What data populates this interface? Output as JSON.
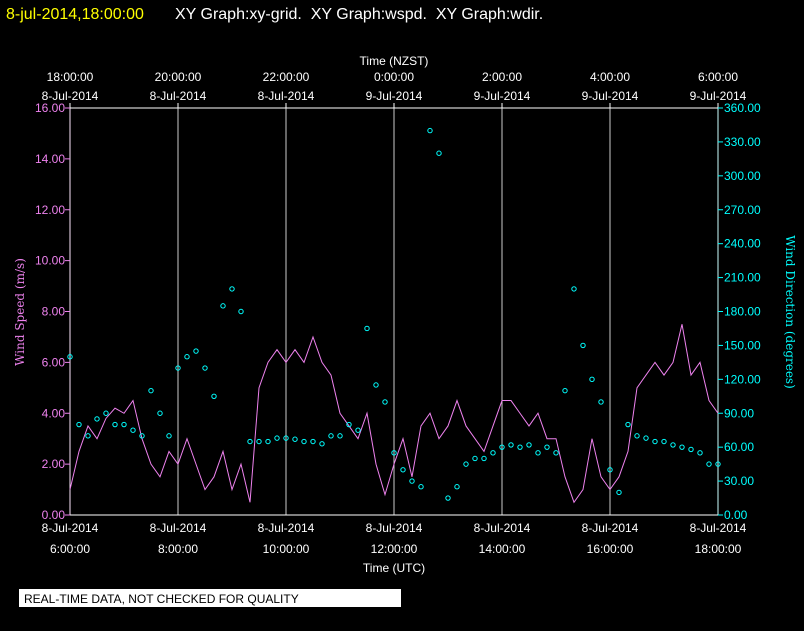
{
  "header": {
    "timestamp": "8-jul-2014,18:00:00",
    "graphs": "XY Graph:xy-grid.  XY Graph:wspd.  XY Graph:wdir."
  },
  "footer": "REAL-TIME DATA, NOT CHECKED FOR QUALITY",
  "chart_data": {
    "type": "line",
    "x_label": "Time (UTC)",
    "x2_label": "Time (NZST)",
    "y_label": "Wind Speed (m/s)",
    "y2_label": "Wind Direction (degrees)",
    "xlim": [
      "2014-07-08 06:00",
      "2014-07-08 18:00"
    ],
    "xticks": [
      {
        "value": "2014-07-08 06:00",
        "label": [
          "8-Jul-2014",
          "6:00:00"
        ]
      },
      {
        "value": "2014-07-08 08:00",
        "label": [
          "8-Jul-2014",
          "8:00:00"
        ]
      },
      {
        "value": "2014-07-08 10:00",
        "label": [
          "8-Jul-2014",
          "10:00:00"
        ]
      },
      {
        "value": "2014-07-08 12:00",
        "label": [
          "8-Jul-2014",
          "12:00:00"
        ]
      },
      {
        "value": "2014-07-08 14:00",
        "label": [
          "8-Jul-2014",
          "14:00:00"
        ]
      },
      {
        "value": "2014-07-08 16:00",
        "label": [
          "8-Jul-2014",
          "16:00:00"
        ]
      },
      {
        "value": "2014-07-08 18:00",
        "label": [
          "8-Jul-2014",
          "18:00:00"
        ]
      }
    ],
    "x2ticks": [
      {
        "value": "2014-07-08 06:00",
        "label": [
          "18:00:00",
          "8-Jul-2014"
        ]
      },
      {
        "value": "2014-07-08 08:00",
        "label": [
          "20:00:00",
          "8-Jul-2014"
        ]
      },
      {
        "value": "2014-07-08 10:00",
        "label": [
          "22:00:00",
          "8-Jul-2014"
        ]
      },
      {
        "value": "2014-07-08 12:00",
        "label": [
          "0:00:00",
          "9-Jul-2014"
        ]
      },
      {
        "value": "2014-07-08 14:00",
        "label": [
          "2:00:00",
          "9-Jul-2014"
        ]
      },
      {
        "value": "2014-07-08 16:00",
        "label": [
          "4:00:00",
          "9-Jul-2014"
        ]
      },
      {
        "value": "2014-07-08 18:00",
        "label": [
          "6:00:00",
          "9-Jul-2014"
        ]
      }
    ],
    "ylim": [
      0,
      16
    ],
    "yticks": [
      {
        "value": 0,
        "label": "0.00"
      },
      {
        "value": 2,
        "label": "2.00"
      },
      {
        "value": 4,
        "label": "4.00"
      },
      {
        "value": 6,
        "label": "6.00"
      },
      {
        "value": 8,
        "label": "8.00"
      },
      {
        "value": 10,
        "label": "10.00"
      },
      {
        "value": 12,
        "label": "12.00"
      },
      {
        "value": 14,
        "label": "14.00"
      },
      {
        "value": 16,
        "label": "16.00"
      }
    ],
    "y2lim": [
      0,
      360
    ],
    "y2ticks": [
      {
        "value": 0,
        "label": "0.00"
      },
      {
        "value": 30,
        "label": "30.00"
      },
      {
        "value": 60,
        "label": "60.00"
      },
      {
        "value": 90,
        "label": "90.00"
      },
      {
        "value": 120,
        "label": "120.00"
      },
      {
        "value": 150,
        "label": "150.00"
      },
      {
        "value": 180,
        "label": "180.00"
      },
      {
        "value": 210,
        "label": "210.00"
      },
      {
        "value": 240,
        "label": "240.00"
      },
      {
        "value": 270,
        "label": "270.00"
      },
      {
        "value": 300,
        "label": "300.00"
      },
      {
        "value": 330,
        "label": "330.00"
      },
      {
        "value": 360,
        "label": "360.00"
      }
    ],
    "grid": true,
    "x": [
      "2014-07-08 06:00",
      "2014-07-08 06:10",
      "2014-07-08 06:20",
      "2014-07-08 06:30",
      "2014-07-08 06:40",
      "2014-07-08 06:50",
      "2014-07-08 07:00",
      "2014-07-08 07:10",
      "2014-07-08 07:20",
      "2014-07-08 07:30",
      "2014-07-08 07:40",
      "2014-07-08 07:50",
      "2014-07-08 08:00",
      "2014-07-08 08:10",
      "2014-07-08 08:20",
      "2014-07-08 08:30",
      "2014-07-08 08:40",
      "2014-07-08 08:50",
      "2014-07-08 09:00",
      "2014-07-08 09:10",
      "2014-07-08 09:20",
      "2014-07-08 09:30",
      "2014-07-08 09:40",
      "2014-07-08 09:50",
      "2014-07-08 10:00",
      "2014-07-08 10:10",
      "2014-07-08 10:20",
      "2014-07-08 10:30",
      "2014-07-08 10:40",
      "2014-07-08 10:50",
      "2014-07-08 11:00",
      "2014-07-08 11:10",
      "2014-07-08 11:20",
      "2014-07-08 11:30",
      "2014-07-08 11:40",
      "2014-07-08 11:50",
      "2014-07-08 12:00",
      "2014-07-08 12:10",
      "2014-07-08 12:20",
      "2014-07-08 12:30",
      "2014-07-08 12:40",
      "2014-07-08 12:50",
      "2014-07-08 13:00",
      "2014-07-08 13:10",
      "2014-07-08 13:20",
      "2014-07-08 13:30",
      "2014-07-08 13:40",
      "2014-07-08 13:50",
      "2014-07-08 14:00",
      "2014-07-08 14:10",
      "2014-07-08 14:20",
      "2014-07-08 14:30",
      "2014-07-08 14:40",
      "2014-07-08 14:50",
      "2014-07-08 15:00",
      "2014-07-08 15:10",
      "2014-07-08 15:20",
      "2014-07-08 15:30",
      "2014-07-08 15:40",
      "2014-07-08 15:50",
      "2014-07-08 16:00",
      "2014-07-08 16:10",
      "2014-07-08 16:20",
      "2014-07-08 16:30",
      "2014-07-08 16:40",
      "2014-07-08 16:50",
      "2014-07-08 17:00",
      "2014-07-08 17:10",
      "2014-07-08 17:20",
      "2014-07-08 17:30",
      "2014-07-08 17:40",
      "2014-07-08 17:50",
      "2014-07-08 18:00"
    ],
    "series": [
      {
        "name": "wspd",
        "color": "#ee82ee",
        "style": "line",
        "values": [
          1.0,
          2.5,
          3.5,
          3.0,
          3.8,
          4.2,
          4.0,
          4.5,
          3.0,
          2.0,
          1.5,
          2.5,
          2.0,
          3.0,
          2.0,
          1.0,
          1.5,
          2.5,
          1.0,
          2.0,
          0.5,
          5.0,
          6.0,
          6.5,
          6.0,
          6.5,
          6.0,
          7.0,
          6.0,
          5.5,
          4.0,
          3.5,
          3.0,
          4.0,
          2.0,
          0.8,
          2.0,
          3.0,
          1.5,
          3.5,
          4.0,
          3.0,
          3.5,
          4.5,
          3.5,
          3.0,
          2.5,
          3.5,
          4.5,
          4.5,
          4.0,
          3.5,
          4.0,
          3.0,
          3.0,
          1.5,
          0.5,
          1.0,
          3.0,
          1.5,
          1.0,
          1.5,
          2.5,
          5.0,
          5.5,
          6.0,
          5.5,
          6.0,
          7.5,
          5.5,
          6.0,
          4.5,
          4.0
        ]
      },
      {
        "name": "wdir",
        "color": "#00ffff",
        "style": "points",
        "axis": "y2",
        "values": [
          140,
          80,
          70,
          85,
          90,
          80,
          80,
          75,
          70,
          110,
          90,
          70,
          130,
          140,
          145,
          130,
          105,
          185,
          200,
          180,
          65,
          65,
          65,
          68,
          68,
          67,
          65,
          65,
          63,
          70,
          70,
          80,
          75,
          165,
          115,
          100,
          55,
          40,
          30,
          25,
          340,
          320,
          15,
          25,
          45,
          50,
          50,
          55,
          60,
          62,
          60,
          62,
          55,
          60,
          55,
          110,
          200,
          150,
          120,
          100,
          40,
          20,
          80,
          70,
          68,
          65,
          65,
          62,
          60,
          58,
          55,
          45,
          45
        ]
      }
    ]
  }
}
